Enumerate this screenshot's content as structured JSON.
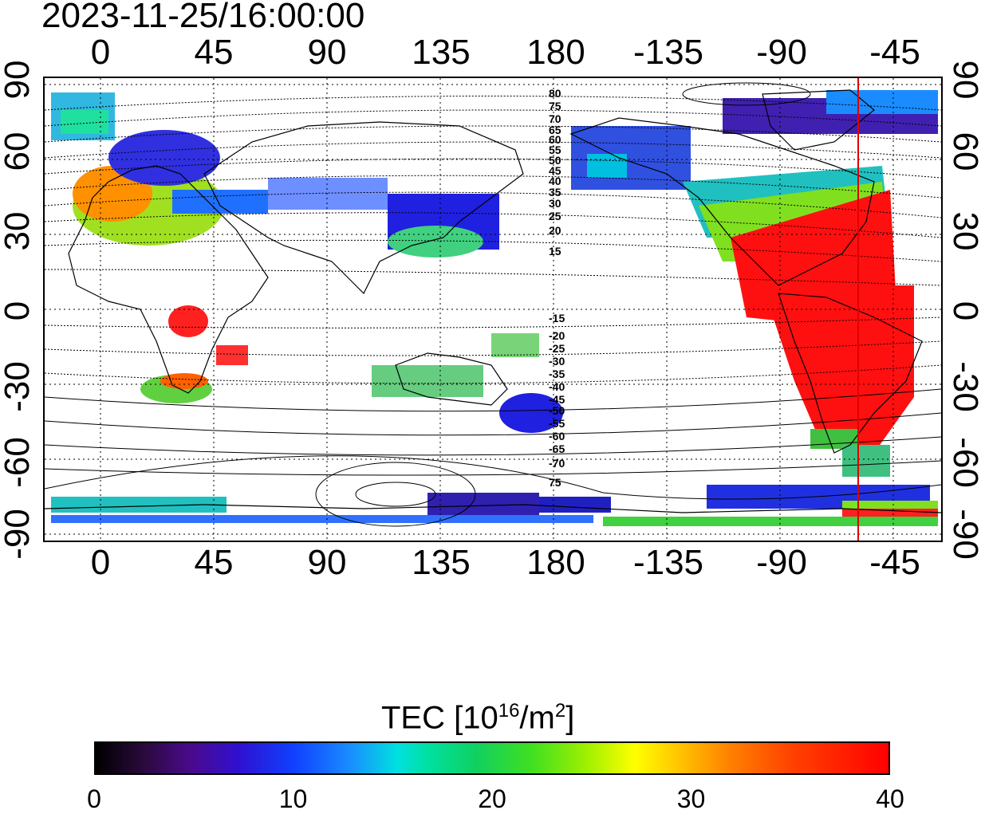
{
  "timestamp": "2023-11-25/16:00:00",
  "map": {
    "top_axis_labels": [
      "0",
      "45",
      "90",
      "135",
      "180",
      "-135",
      "-90",
      "-45"
    ],
    "bottom_axis_labels": [
      "0",
      "45",
      "90",
      "135",
      "180",
      "-135",
      "-90",
      "-45"
    ],
    "left_axis_labels": [
      "90",
      "60",
      "30",
      "0",
      "-30",
      "-60",
      "-90"
    ],
    "right_axis_labels": [
      "90",
      "60",
      "30",
      "0",
      "-30",
      "-60",
      "-90"
    ],
    "contour_labels_north": [
      "80",
      "75",
      "70",
      "65",
      "60",
      "55",
      "50",
      "45",
      "40",
      "35",
      "30",
      "25",
      "20",
      "15"
    ],
    "contour_labels_south": [
      "-15",
      "-20",
      "-25",
      "-30",
      "-35",
      "-40",
      "-45",
      "-50",
      "-55",
      "-60",
      "-65",
      "-70",
      "75"
    ]
  },
  "colorbar": {
    "title_prefix": "TEC  [10",
    "title_exp": "16",
    "title_mid": "/m",
    "title_exp2": "2",
    "title_suffix": "]",
    "tick_labels": [
      "0",
      "10",
      "20",
      "30",
      "40"
    ],
    "min": 0,
    "max": 40,
    "colors": {
      "low": "#000000",
      "blue": "#1040ff",
      "cyan": "#00e0e0",
      "green": "#40e020",
      "yellow": "#ffff00",
      "high": "#ff0000"
    }
  }
}
